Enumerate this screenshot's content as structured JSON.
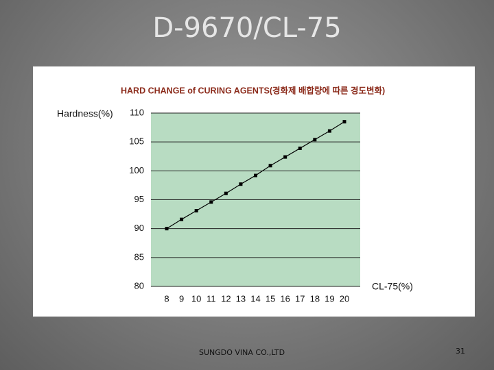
{
  "header": {
    "title": "D-9670/CL-75"
  },
  "chart_data": {
    "type": "line",
    "title": "HARD CHANGE of CURING AGENTS(경화제 배합량에 따른 경도변화)",
    "y_label": "Hardness(%)",
    "x_label": "CL-75(%)",
    "categories": [
      "8",
      "9",
      "10",
      "11",
      "12",
      "13",
      "14",
      "15",
      "16",
      "17",
      "18",
      "19",
      "20"
    ],
    "series": [
      {
        "name": "Hardness",
        "color": "#000000",
        "values": [
          90,
          91.6,
          93.1,
          94.6,
          96.1,
          97.7,
          99.2,
          100.9,
          102.4,
          103.9,
          105.4,
          106.9,
          108.5
        ]
      }
    ],
    "ylim": [
      80,
      110
    ],
    "yticks": [
      80,
      85,
      90,
      95,
      100,
      105,
      110
    ],
    "grid": true,
    "plot_color": "#b8dcc2"
  },
  "footer": {
    "company": "SUNGDO VINA CO.,LTD",
    "page": "31"
  }
}
